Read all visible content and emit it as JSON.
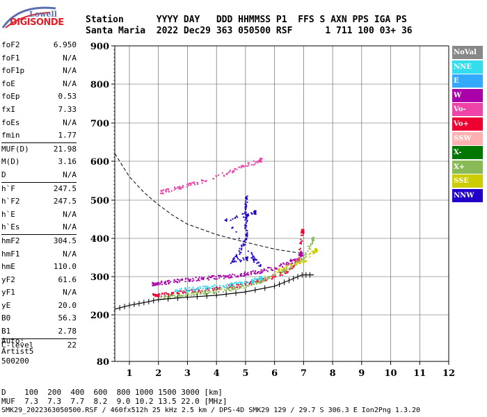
{
  "header": {
    "line1": "Station      YYYY DAY   DDD HHMMSS P1  FFS S AXN PPS IGA PS",
    "line2": "Santa Maria  2022 Dec29 363 050500 RSF      1 711 100 03+ 36"
  },
  "logo": {
    "top": "Lowell",
    "bottom": "DIGISONDE"
  },
  "params": [
    {
      "name": "foF2",
      "value": "6.950"
    },
    {
      "name": "foF1",
      "value": "N/A"
    },
    {
      "name": "foF1p",
      "value": "N/A"
    },
    {
      "name": "foE",
      "value": "N/A"
    },
    {
      "name": "foEp",
      "value": "0.53"
    },
    {
      "name": "fxI",
      "value": "7.33"
    },
    {
      "name": "foEs",
      "value": "N/A"
    },
    {
      "name": "fmin",
      "value": "1.77"
    },
    {
      "name": "MUF(D)",
      "value": "21.98"
    },
    {
      "name": "M(D)",
      "value": "3.16"
    },
    {
      "name": "D",
      "value": "N/A"
    },
    {
      "name": "h`F",
      "value": "247.5"
    },
    {
      "name": "h`F2",
      "value": "247.5"
    },
    {
      "name": "h`E",
      "value": "N/A"
    },
    {
      "name": "h`Es",
      "value": "N/A"
    },
    {
      "name": "hmF2",
      "value": "304.5"
    },
    {
      "name": "hmF1",
      "value": "N/A"
    },
    {
      "name": "hmE",
      "value": "110.0"
    },
    {
      "name": "yF2",
      "value": "61.6"
    },
    {
      "name": "yF1",
      "value": "N/A"
    },
    {
      "name": "yE",
      "value": "20.0"
    },
    {
      "name": "B0",
      "value": "56.3"
    },
    {
      "name": "B1",
      "value": "2.78"
    },
    {
      "name": "C-level",
      "value": "22"
    }
  ],
  "auto": {
    "line1": "Auto:",
    "line2": "Artist5",
    "line3": "500200"
  },
  "bottom": {
    "distance_row": "D    100  200  400  600  800 1000 1500 3000 [km]",
    "muf_row": "MUF  7.3  7.3  7.7  8.2  9.0 10.2 13.5 22.0 [MHz]",
    "footer": "SMK29_2022363050500.RSF / 460fx512h 25 kHz 2.5 km / DPS-4D SMK29 129 / 29.7 S 306.3 E Ion2Png 1.3.20"
  },
  "legend": [
    {
      "label": "NoVal",
      "color": "#888888"
    },
    {
      "label": "NNE",
      "color": "#33ddee"
    },
    {
      "label": "E",
      "color": "#33aaff"
    },
    {
      "label": "W",
      "color": "#aa00aa"
    },
    {
      "label": "Vo-",
      "color": "#ee44aa"
    },
    {
      "label": "Vo+",
      "color": "#ee0033"
    },
    {
      "label": "SSW",
      "color": "#ffb0b0"
    },
    {
      "label": "X-",
      "color": "#007700"
    },
    {
      "label": "X+",
      "color": "#88bb55"
    },
    {
      "label": "SSE",
      "color": "#cccc00"
    },
    {
      "label": "NNW",
      "color": "#2200cc"
    }
  ],
  "chart_data": {
    "type": "scatter",
    "xlim": [
      0.5,
      12
    ],
    "ylim": [
      80,
      900
    ],
    "x_ticks": [
      1,
      2,
      3,
      4,
      5,
      6,
      7,
      8,
      9,
      10,
      11,
      12
    ],
    "x_tick_labels": [
      "1",
      "2",
      "3",
      "4",
      "5",
      "6",
      "7",
      "8",
      "9",
      "10",
      "11",
      "12"
    ],
    "y_ticks": [
      80,
      200,
      300,
      400,
      500,
      600,
      700,
      800,
      900
    ],
    "y_tick_labels": [
      "80",
      "200",
      "300",
      "400",
      "500",
      "600",
      "700",
      "800",
      "900"
    ],
    "grid": true,
    "legend_position": "right",
    "series": [
      {
        "name": "Vo+",
        "color": "#ee0033",
        "points": [
          [
            1.75,
            252
          ],
          [
            2,
            254
          ],
          [
            2.5,
            258
          ],
          [
            3,
            262
          ],
          [
            3.5,
            266
          ],
          [
            4,
            270
          ],
          [
            4.5,
            276
          ],
          [
            5,
            283
          ],
          [
            5.5,
            292
          ],
          [
            6,
            303
          ],
          [
            6.5,
            320
          ],
          [
            6.8,
            345
          ],
          [
            6.95,
            420
          ]
        ]
      },
      {
        "name": "W",
        "color": "#aa00aa",
        "points": [
          [
            1.75,
            283
          ],
          [
            2,
            285
          ],
          [
            2.5,
            289
          ],
          [
            3,
            293
          ],
          [
            3.5,
            297
          ],
          [
            4,
            300
          ],
          [
            4.5,
            304
          ],
          [
            5,
            309
          ],
          [
            5.5,
            315
          ],
          [
            6,
            325
          ],
          [
            6.5,
            338
          ],
          [
            6.9,
            360
          ]
        ]
      },
      {
        "name": "X+",
        "color": "#88bb55",
        "points": [
          [
            2,
            246
          ],
          [
            2.5,
            250
          ],
          [
            3,
            255
          ],
          [
            3.5,
            259
          ],
          [
            4,
            264
          ],
          [
            4.5,
            270
          ],
          [
            5,
            278
          ],
          [
            5.5,
            290
          ],
          [
            6,
            305
          ],
          [
            6.5,
            325
          ],
          [
            7,
            350
          ],
          [
            7.3,
            400
          ]
        ]
      },
      {
        "name": "NNW",
        "color": "#2200cc",
        "points": [
          [
            5,
            510
          ],
          [
            5,
            480
          ],
          [
            5,
            440
          ],
          [
            5,
            400
          ],
          [
            4.8,
            370
          ],
          [
            4.5,
            340
          ],
          [
            5.2,
            350
          ],
          [
            5.5,
            330
          ],
          [
            4.3,
            450
          ],
          [
            5.3,
            470
          ]
        ]
      },
      {
        "name": "NNE",
        "color": "#33ddee",
        "points": [
          [
            2.5,
            265
          ],
          [
            3,
            268
          ],
          [
            3.5,
            272
          ],
          [
            4,
            276
          ],
          [
            4.5,
            281
          ],
          [
            5,
            287
          ],
          [
            5.5,
            297
          ]
        ]
      },
      {
        "name": "SSE",
        "color": "#cccc00",
        "points": [
          [
            6,
            315
          ],
          [
            6.5,
            330
          ],
          [
            7,
            345
          ],
          [
            7.4,
            370
          ]
        ]
      },
      {
        "name": "Vo-",
        "color": "#ee44aa",
        "points": [
          [
            2,
            520
          ],
          [
            2.5,
            530
          ],
          [
            3,
            540
          ],
          [
            3.5,
            550
          ],
          [
            4.5,
            575
          ],
          [
            5,
            590
          ],
          [
            5.5,
            605
          ]
        ]
      }
    ],
    "profile_curve": [
      [
        0.5,
        215
      ],
      [
        1,
        225
      ],
      [
        1.5,
        232
      ],
      [
        2,
        240
      ],
      [
        3,
        246
      ],
      [
        4,
        251
      ],
      [
        5,
        260
      ],
      [
        6,
        275
      ],
      [
        6.5,
        290
      ],
      [
        6.95,
        304.5
      ],
      [
        7.35,
        304.5
      ]
    ],
    "muf_curve": [
      [
        0.5,
        620
      ],
      [
        1,
        560
      ],
      [
        1.5,
        520
      ],
      [
        2,
        488
      ],
      [
        2.5,
        460
      ],
      [
        3,
        437
      ],
      [
        4,
        410
      ],
      [
        5,
        390
      ],
      [
        6,
        372
      ],
      [
        7,
        360
      ]
    ]
  }
}
